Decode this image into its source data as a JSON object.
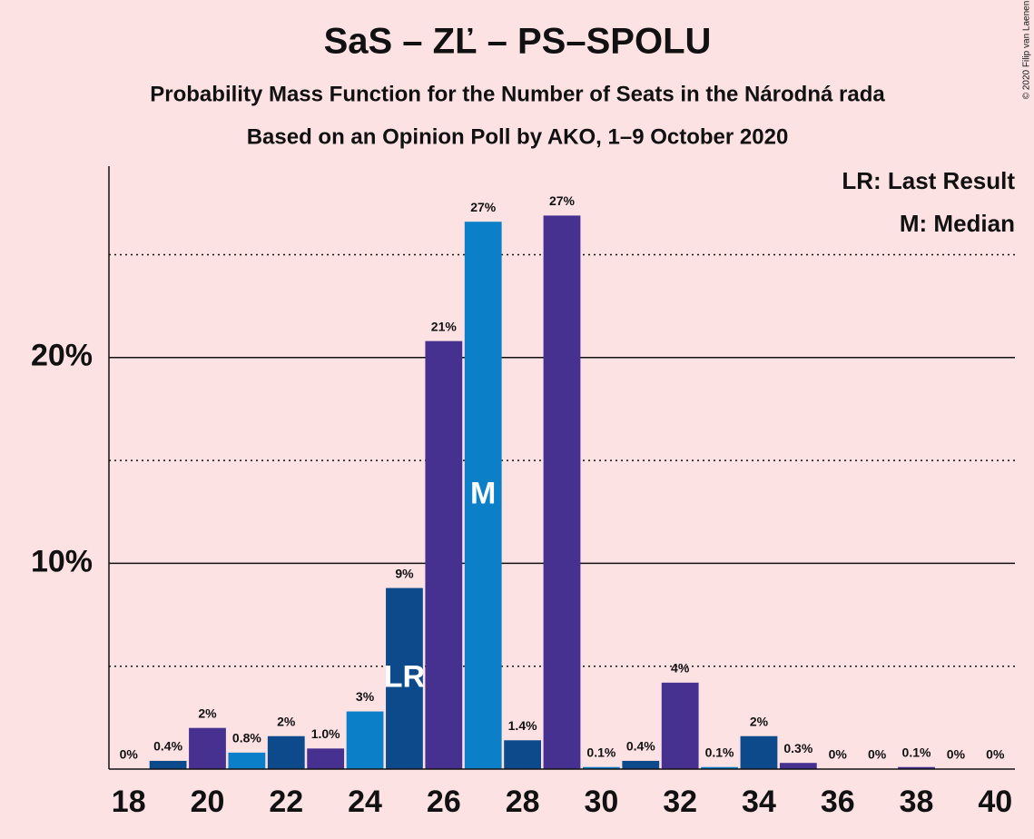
{
  "chart_data": {
    "type": "bar",
    "title": "SaS – ZĽ – PS–SPOLU",
    "subtitle": "Probability Mass Function for the Number of Seats in the Národná rada",
    "subtitle2": "Based on an Opinion Poll by AKO, 1–9 October 2020",
    "copyright": "© 2020 Filip van Laenen",
    "legend": [
      "LR: Last Result",
      "M: Median"
    ],
    "legend_position": "top-right",
    "x": [
      18,
      19,
      20,
      21,
      22,
      23,
      24,
      25,
      26,
      27,
      28,
      29,
      30,
      31,
      32,
      33,
      34,
      35,
      36,
      37,
      38,
      39,
      40
    ],
    "values": [
      0,
      0.4,
      2.0,
      0.8,
      1.6,
      1.0,
      2.8,
      8.8,
      20.8,
      26.6,
      1.4,
      26.9,
      0.1,
      0.4,
      4.2,
      0.1,
      1.6,
      0.3,
      0,
      0,
      0.1,
      0,
      0
    ],
    "value_labels": [
      "0%",
      "0.4%",
      "2%",
      "0.8%",
      "2%",
      "1.0%",
      "3%",
      "9%",
      "21%",
      "27%",
      "1.4%",
      "27%",
      "0.1%",
      "0.4%",
      "4%",
      "0.1%",
      "2%",
      "0.3%",
      "0%",
      "0%",
      "0.1%",
      "0%",
      "0%"
    ],
    "colors": [
      "#0d4a8c",
      "#0d4a8c",
      "#463190",
      "#0b80c8",
      "#0d4a8c",
      "#463190",
      "#0b80c8",
      "#0d4a8c",
      "#463190",
      "#0b80c8",
      "#0d4a8c",
      "#463190",
      "#0b80c8",
      "#0d4a8c",
      "#463190",
      "#0b80c8",
      "#0d4a8c",
      "#463190",
      "#0b80c8",
      "#0d4a8c",
      "#463190",
      "#0b80c8",
      "#0d4a8c"
    ],
    "annotations": [
      {
        "x": 25,
        "text": "LR"
      },
      {
        "x": 27,
        "text": "M"
      }
    ],
    "xlim": [
      17.5,
      40.5
    ],
    "xticks": [
      18,
      20,
      22,
      24,
      26,
      28,
      30,
      32,
      34,
      36,
      38,
      40
    ],
    "ylim": [
      0,
      29.3
    ],
    "yticks": [
      {
        "value": 10,
        "label": "10%"
      },
      {
        "value": 20,
        "label": "20%"
      }
    ],
    "minor_yticks": [
      5,
      15,
      25
    ],
    "grid": true
  }
}
